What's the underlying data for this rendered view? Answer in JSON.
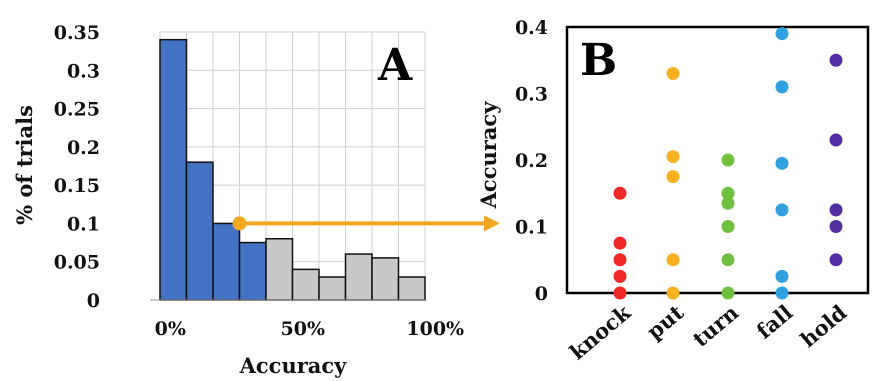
{
  "colors": {
    "blue_bar": "#4472c4",
    "gray_bar": "#c8c8c8",
    "arrow": "#f0a820",
    "knock": "#f02828",
    "put": "#f8b020",
    "turn": "#70c040",
    "fall": "#30a0e0",
    "hold": "#5030a0"
  },
  "chart_data": [
    {
      "panel": "A",
      "type": "bar",
      "ylabel": "% of trials",
      "xlabel": "Accuracy",
      "ylim": [
        0,
        0.35
      ],
      "y_ticks": [
        "0",
        "0.05",
        "0.1",
        "0.15",
        "0.2",
        "0.25",
        "0.3",
        "0.35"
      ],
      "x_tick_labels": [
        "0%",
        "50%",
        "100%"
      ],
      "grid": true,
      "bins": [
        0,
        0.1,
        0.2,
        0.3,
        0.4,
        0.5,
        0.6,
        0.7,
        0.8,
        0.9
      ],
      "values": [
        0.34,
        0.18,
        0.1,
        0.075,
        0.08,
        0.04,
        0.03,
        0.06,
        0.055,
        0.03
      ],
      "highlighted_bins": 4,
      "highlight_point": {
        "x": 0.3,
        "y": 0.1
      }
    },
    {
      "panel": "B",
      "type": "scatter",
      "ylabel": "Accuracy",
      "ylim": [
        0,
        0.4
      ],
      "y_ticks": [
        "0",
        "0.1",
        "0.2",
        "0.3",
        "0.4"
      ],
      "categories": [
        "knock",
        "put",
        "turn",
        "fall",
        "hold"
      ],
      "points": [
        [
          0.15,
          0.075,
          0.05,
          0.025,
          0.0
        ],
        [
          0.33,
          0.205,
          0.175,
          0.05,
          0.0
        ],
        [
          0.2,
          0.15,
          0.135,
          0.1,
          0.05,
          0.0
        ],
        [
          0.39,
          0.31,
          0.195,
          0.125,
          0.025,
          0.0
        ],
        [
          0.35,
          0.23,
          0.125,
          0.1,
          0.05
        ]
      ]
    }
  ]
}
